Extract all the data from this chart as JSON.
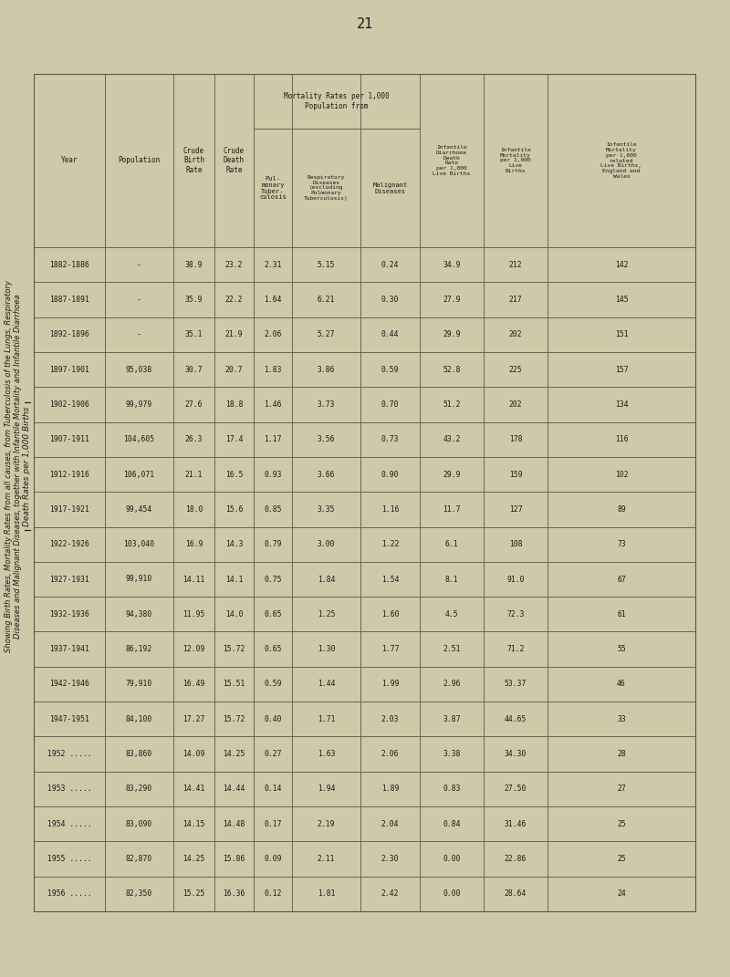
{
  "title_line1": "Showing Birth Rates, Mortality Rates from all causes, from Tuberculosis of the Lungs, Respiratory",
  "title_line2": "Diseases and Malignant Diseases, together with Infantile Mortality and Infantile Diarrhoea",
  "title_line3": "Death Rates per 1,000 Births",
  "page_number": "21",
  "years": [
    "1882-1886",
    "1887-1891",
    "1892-1896",
    "1897-1901",
    "1902-1906",
    "1907-1911",
    "1912-1916",
    "1917-1921",
    "1922-1926",
    "1927-1931",
    "1932-1936",
    "1937-1941",
    "1942-1946",
    "1947-1951",
    "1952 .....",
    "1953 .....",
    "1954 .....",
    "1955 .....",
    "1956 ....."
  ],
  "population": [
    "-",
    "-",
    "-",
    "95,038",
    "99,979",
    "104,605",
    "106,071",
    "99,454",
    "103,040",
    "99,910",
    "94,380",
    "86,192",
    "79,910",
    "84,100",
    "83,860",
    "83,290",
    "83,090",
    "82,870",
    "82,350"
  ],
  "crude_birth_rate": [
    "38.9",
    "35.9",
    "35.1",
    "30.7",
    "27.6",
    "26.3",
    "21.1",
    "18.0",
    "16.9",
    "14.11",
    "11.95",
    "12.09",
    "16.49",
    "17.27",
    "14.09",
    "14.41",
    "14.15",
    "14.25",
    "15.25"
  ],
  "crude_death_rate": [
    "23.2",
    "22.2",
    "21.9",
    "20.7",
    "18.8",
    "17.4",
    "16.5",
    "15.6",
    "14.3",
    "14.1",
    "14.0",
    "15.72",
    "15.51",
    "15.72",
    "14.25",
    "14.44",
    "14.48",
    "15.86",
    "16.36"
  ],
  "pulmonary_tuberculosis": [
    "2.31",
    "1.64",
    "2.06",
    "1.83",
    "1.46",
    "1.17",
    "0.93",
    "0.85",
    "0.79",
    "0.75",
    "0.65",
    "0.65",
    "0.59",
    "0.40",
    "0.27",
    "0.14",
    "0.17",
    "0.09",
    "0.12"
  ],
  "respiratory_diseases": [
    "5.15",
    "6.21",
    "5.27",
    "3.86",
    "3.73",
    "3.56",
    "3.66",
    "3.35",
    "3.00",
    "1.84",
    "1.25",
    "1.30",
    "1.44",
    "1.71",
    "1.63",
    "1.94",
    "2.19",
    "2.11",
    "1.81"
  ],
  "malignant_diseases": [
    "0.24",
    "0.30",
    "0.44",
    "0.59",
    "0.70",
    "0.73",
    "0.90",
    "1.16",
    "1.22",
    "1.54",
    "1.60",
    "1.77",
    "1.99",
    "2.03",
    "2.06",
    "1.89",
    "2.04",
    "2.30",
    "2.42"
  ],
  "infantile_diarrhoea": [
    "34.9",
    "27.9",
    "29.9",
    "52.8",
    "51.2",
    "43.2",
    "29.9",
    "11.7",
    "6.1",
    "8.1",
    "4.5",
    "2.51",
    "2.96",
    "3.87",
    "3.38",
    "0.83",
    "0.84",
    "0.00",
    "0.00"
  ],
  "infantile_mortality_live": [
    "212",
    "217",
    "202",
    "225",
    "202",
    "178",
    "159",
    "127",
    "108",
    "91.0",
    "72.3",
    "71.2",
    "53.37",
    "44.65",
    "34.30",
    "27.50",
    "31.46",
    "22.86",
    "28.64"
  ],
  "infantile_mortality_related": [
    "142",
    "145",
    "151",
    "157",
    "134",
    "116",
    "102",
    "89",
    "73",
    "67",
    "61",
    "55",
    "46",
    "33",
    "28",
    "27",
    "25",
    "25",
    "24"
  ],
  "bg_color": "#cec9a8",
  "text_color": "#1a1a1a",
  "line_color": "#555555",
  "header_col1": "Infantile\nMortality\nper 1,000\nrelated\nLive Births,\nEngland and\nWales",
  "header_col2": "Infantile\nMortality\nper 1,000\nLive\nBirths",
  "header_col3": "Infantile\nDiarrhoea\nDeath\nRate\nper 1,000\nLive Births",
  "header_mort_group": "Mortality Rates per 1,000\nPopulation from",
  "header_pul": "Pul-\nmonary\nTuber-\nculosis",
  "header_resp": "Respiratory\nDiseases\n(excluding\nPulmonary\nTuberculosis)",
  "header_malig": "Malignant\nDiseases",
  "header_crude_death": "Crude\nDeath\nRate",
  "header_crude_birth": "Crude\nBirth\nRate",
  "header_pop": "Population",
  "header_year": "Year"
}
